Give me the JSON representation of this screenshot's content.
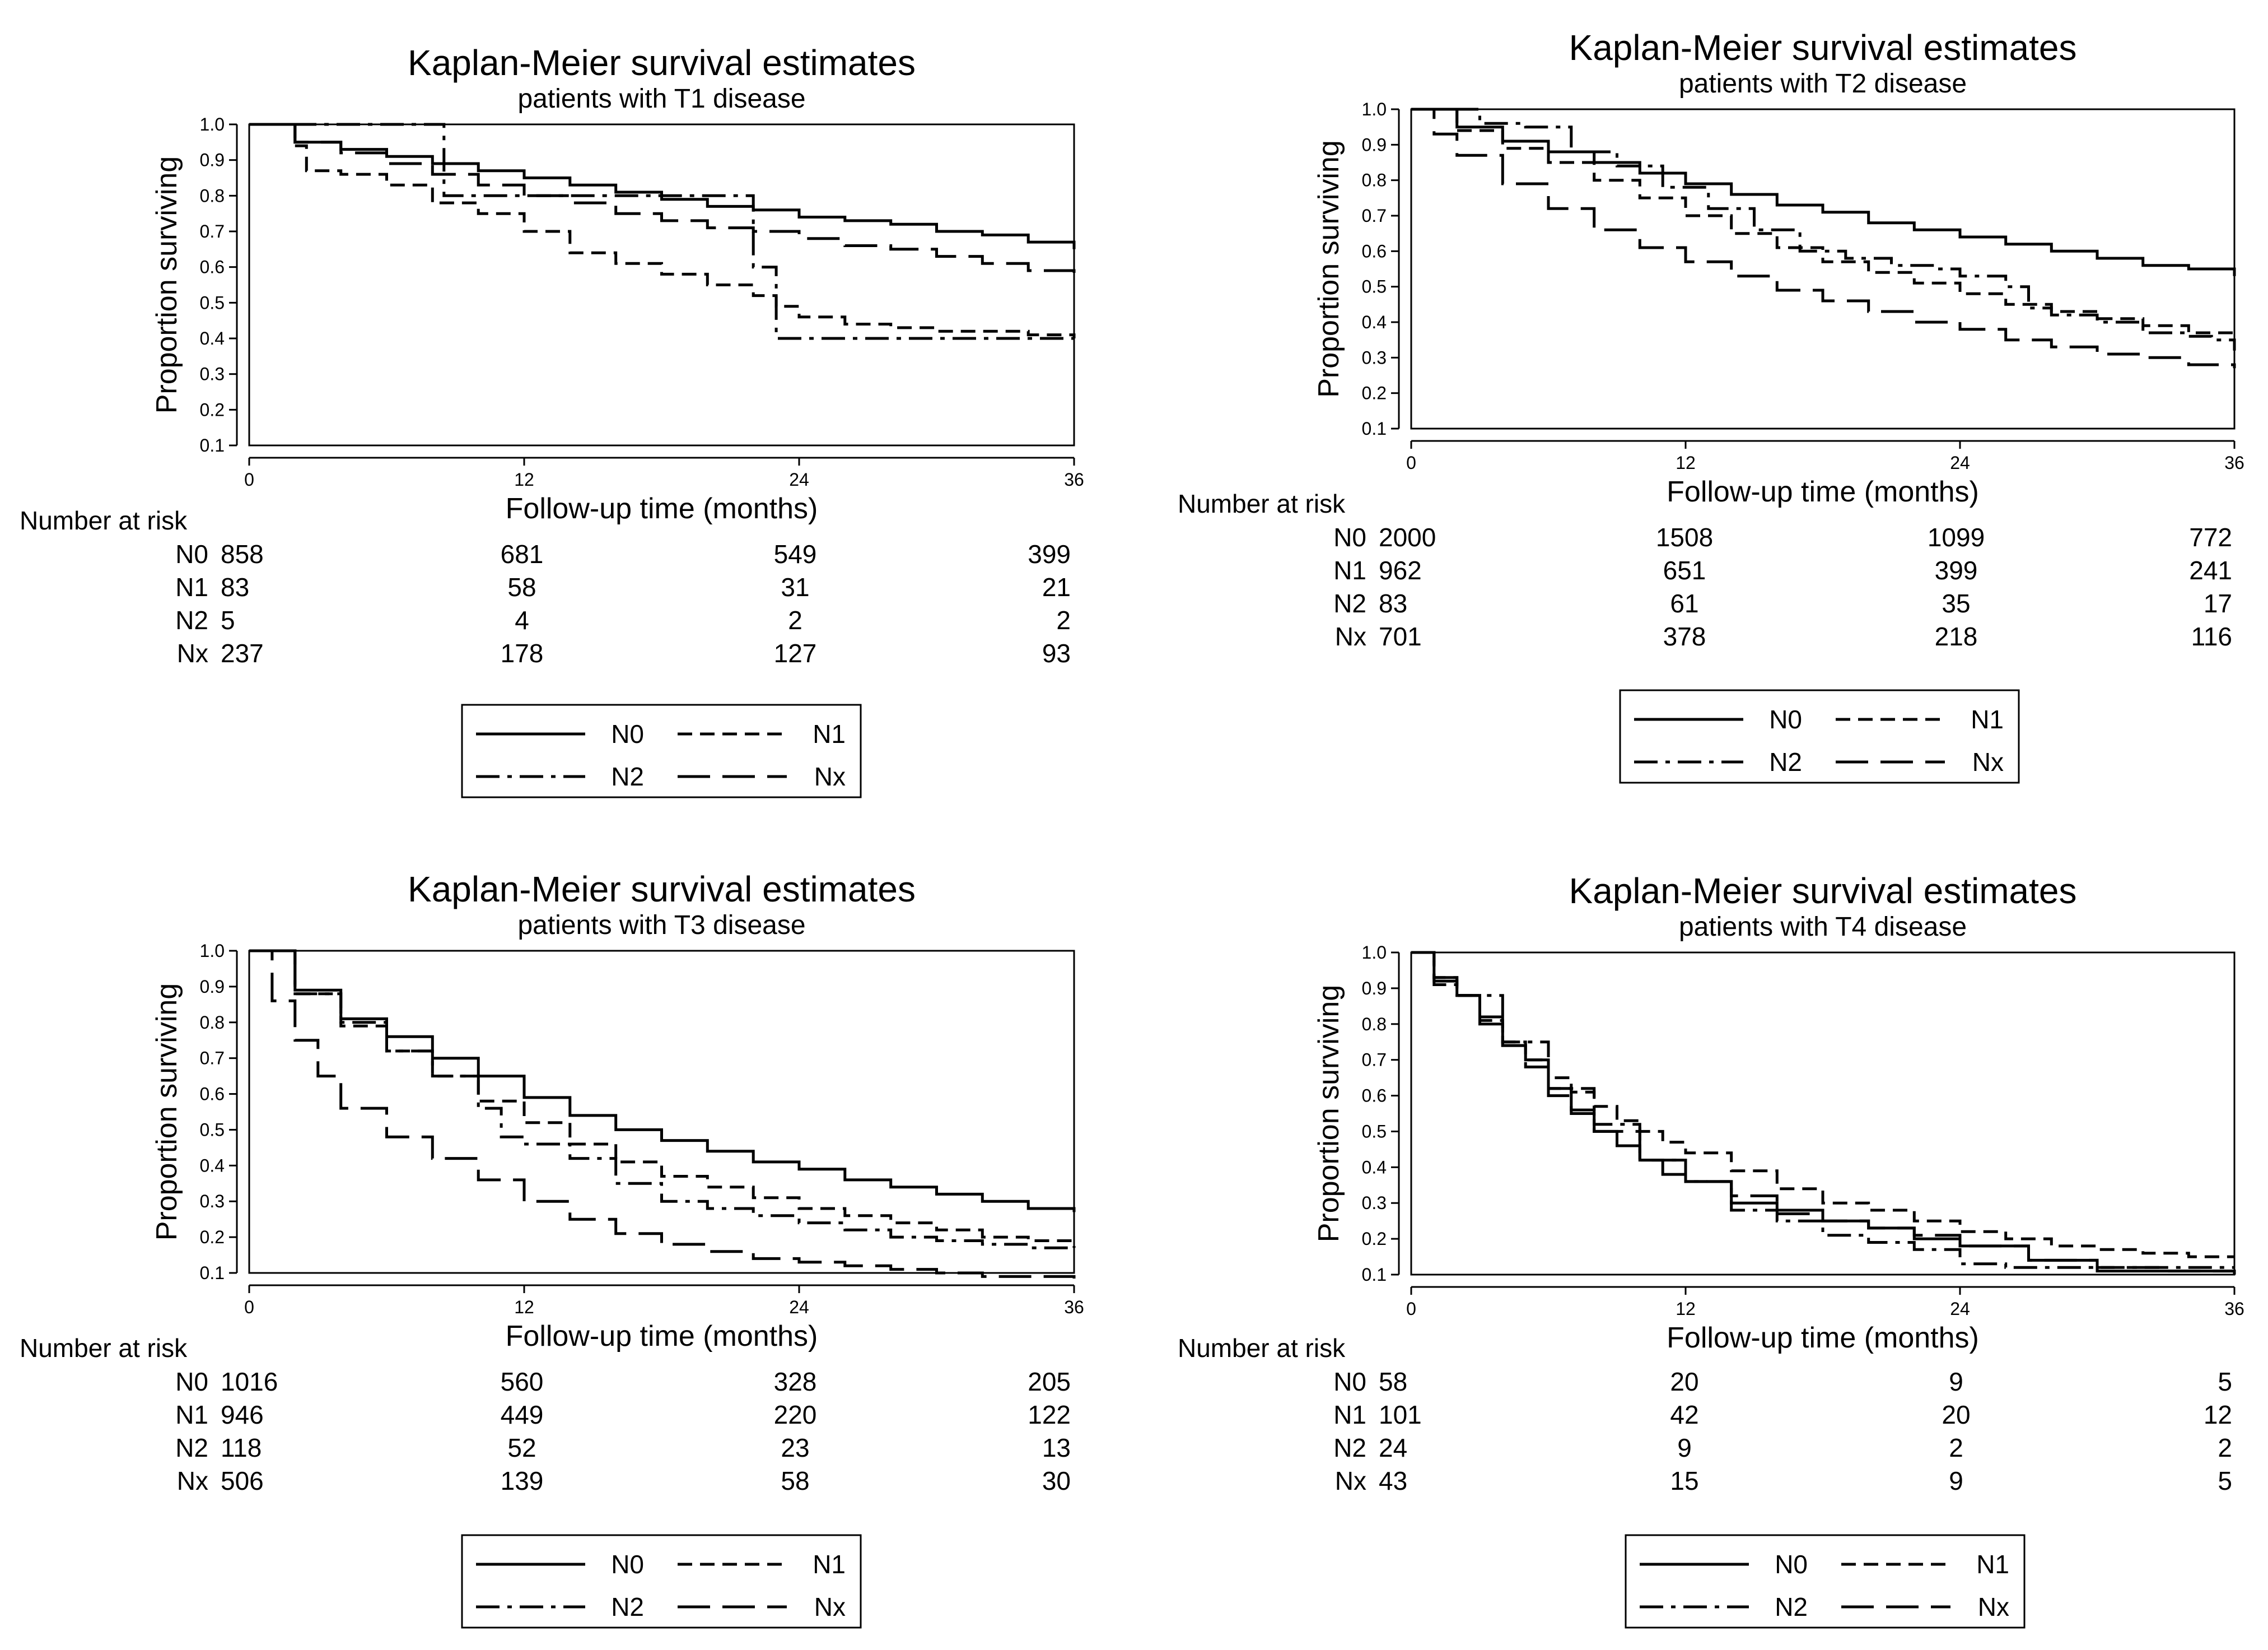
{
  "chart_data": [
    {
      "type": "line",
      "title": "Kaplan-Meier survival estimates",
      "subtitle": "patients with T1 disease",
      "xlabel": "Follow-up time (months)",
      "ylabel": "Proportion surviving",
      "xlim": [
        0,
        36
      ],
      "ylim": [
        0.1,
        1.0
      ],
      "xticks": [
        "0",
        "12",
        "24",
        "36"
      ],
      "yticks": [
        "0.1",
        "0.2",
        "0.3",
        "0.4",
        "0.5",
        "0.6",
        "0.7",
        "0.8",
        "0.9",
        "1.0"
      ],
      "grid": false,
      "legend": "bottom",
      "series": [
        {
          "name": "N0",
          "style": "solid",
          "x": [
            0,
            2,
            4,
            6,
            8,
            10,
            12,
            14,
            16,
            18,
            20,
            22,
            24,
            26,
            28,
            30,
            32,
            34,
            36
          ],
          "y": [
            1.0,
            0.95,
            0.93,
            0.91,
            0.89,
            0.87,
            0.85,
            0.83,
            0.81,
            0.79,
            0.77,
            0.76,
            0.74,
            0.73,
            0.72,
            0.7,
            0.69,
            0.67,
            0.65
          ]
        },
        {
          "name": "N1",
          "style": "dashed",
          "x": [
            0,
            2,
            2.5,
            4,
            6,
            8,
            10,
            12,
            14,
            16,
            18,
            20,
            22,
            23,
            24,
            26,
            28,
            30,
            32,
            34,
            36
          ],
          "y": [
            1.0,
            0.94,
            0.87,
            0.86,
            0.83,
            0.78,
            0.75,
            0.7,
            0.64,
            0.61,
            0.58,
            0.55,
            0.52,
            0.49,
            0.46,
            0.44,
            0.43,
            0.42,
            0.42,
            0.41,
            0.4
          ]
        },
        {
          "name": "N2",
          "style": "dashdot",
          "x": [
            0,
            8.5,
            8.5,
            22.0,
            22.0,
            23.0,
            23.0,
            36
          ],
          "y": [
            1.0,
            1.0,
            0.8,
            0.8,
            0.6,
            0.6,
            0.4,
            0.4
          ]
        },
        {
          "name": "Nx",
          "style": "longdash",
          "x": [
            0,
            2,
            4,
            6,
            8,
            10,
            12,
            14,
            16,
            18,
            20,
            22,
            24,
            26,
            28,
            30,
            32,
            34,
            36
          ],
          "y": [
            1.0,
            0.95,
            0.92,
            0.89,
            0.86,
            0.83,
            0.8,
            0.78,
            0.75,
            0.73,
            0.71,
            0.7,
            0.68,
            0.66,
            0.65,
            0.63,
            0.61,
            0.59,
            0.58
          ]
        }
      ],
      "risk_table": {
        "label": "Number at risk",
        "times": [
          "0",
          "12",
          "24",
          "36"
        ],
        "rows": [
          {
            "group": "N0",
            "values": [
              "858",
              "681",
              "549",
              "399"
            ]
          },
          {
            "group": "N1",
            "values": [
              "83",
              "58",
              "31",
              "21"
            ]
          },
          {
            "group": "N2",
            "values": [
              "5",
              "4",
              "2",
              "2"
            ]
          },
          {
            "group": "Nx",
            "values": [
              "237",
              "178",
              "127",
              "93"
            ]
          }
        ]
      }
    },
    {
      "type": "line",
      "title": "Kaplan-Meier survival estimates",
      "subtitle": "patients with T2 disease",
      "xlabel": "Follow-up time (months)",
      "ylabel": "Proportion surviving",
      "xlim": [
        0,
        36
      ],
      "ylim": [
        0.1,
        1.0
      ],
      "xticks": [
        "0",
        "12",
        "24",
        "36"
      ],
      "yticks": [
        "0.1",
        "0.2",
        "0.3",
        "0.4",
        "0.5",
        "0.6",
        "0.7",
        "0.8",
        "0.9",
        "1.0"
      ],
      "grid": false,
      "legend": "bottom",
      "series": [
        {
          "name": "N0",
          "style": "solid",
          "x": [
            0,
            2,
            4,
            6,
            8,
            10,
            12,
            14,
            16,
            18,
            20,
            22,
            24,
            26,
            28,
            30,
            32,
            34,
            36
          ],
          "y": [
            1.0,
            0.95,
            0.91,
            0.88,
            0.85,
            0.82,
            0.79,
            0.76,
            0.73,
            0.71,
            0.68,
            0.66,
            0.64,
            0.62,
            0.6,
            0.58,
            0.56,
            0.55,
            0.53
          ]
        },
        {
          "name": "N1",
          "style": "dashed",
          "x": [
            0,
            2,
            4,
            6,
            8,
            10,
            12,
            14,
            16,
            18,
            20,
            22,
            24,
            26,
            28,
            30,
            32,
            34,
            36
          ],
          "y": [
            1.0,
            0.94,
            0.89,
            0.85,
            0.8,
            0.75,
            0.7,
            0.65,
            0.61,
            0.57,
            0.54,
            0.51,
            0.48,
            0.45,
            0.43,
            0.41,
            0.39,
            0.37,
            0.36
          ]
        },
        {
          "name": "N2",
          "style": "dashdot",
          "x": [
            0,
            3,
            5,
            7,
            9,
            11,
            13,
            15,
            17,
            19,
            21,
            23,
            24,
            26,
            27,
            28,
            30,
            32,
            34,
            35,
            36
          ],
          "y": [
            1.0,
            0.96,
            0.95,
            0.88,
            0.84,
            0.78,
            0.72,
            0.66,
            0.6,
            0.58,
            0.56,
            0.55,
            0.53,
            0.5,
            0.44,
            0.42,
            0.4,
            0.37,
            0.36,
            0.35,
            0.32
          ]
        },
        {
          "name": "Nx",
          "style": "longdash",
          "x": [
            0,
            1,
            2,
            4,
            6,
            8,
            10,
            12,
            14,
            16,
            18,
            20,
            22,
            24,
            26,
            28,
            30,
            32,
            34,
            36
          ],
          "y": [
            1.0,
            0.93,
            0.87,
            0.79,
            0.72,
            0.66,
            0.61,
            0.57,
            0.53,
            0.49,
            0.46,
            0.43,
            0.4,
            0.38,
            0.35,
            0.33,
            0.31,
            0.3,
            0.28,
            0.27
          ]
        }
      ],
      "risk_table": {
        "label": "Number at risk",
        "times": [
          "0",
          "12",
          "24",
          "36"
        ],
        "rows": [
          {
            "group": "N0",
            "values": [
              "2000",
              "1508",
              "1099",
              "772"
            ]
          },
          {
            "group": "N1",
            "values": [
              "962",
              "651",
              "399",
              "241"
            ]
          },
          {
            "group": "N2",
            "values": [
              "83",
              "61",
              "35",
              "17"
            ]
          },
          {
            "group": "Nx",
            "values": [
              "701",
              "378",
              "218",
              "116"
            ]
          }
        ]
      }
    },
    {
      "type": "line",
      "title": "Kaplan-Meier survival estimates",
      "subtitle": "patients with T3 disease",
      "xlabel": "Follow-up time (months)",
      "ylabel": "Proportion surviving",
      "xlim": [
        0,
        36
      ],
      "ylim": [
        0.1,
        1.0
      ],
      "xticks": [
        "0",
        "12",
        "24",
        "36"
      ],
      "yticks": [
        "0.1",
        "0.2",
        "0.3",
        "0.4",
        "0.5",
        "0.6",
        "0.7",
        "0.8",
        "0.9",
        "1.0"
      ],
      "grid": false,
      "legend": "bottom",
      "series": [
        {
          "name": "N0",
          "style": "solid",
          "x": [
            0,
            2,
            4,
            6,
            8,
            10,
            12,
            14,
            16,
            18,
            20,
            22,
            24,
            26,
            28,
            30,
            32,
            34,
            36
          ],
          "y": [
            1.0,
            0.89,
            0.81,
            0.76,
            0.7,
            0.65,
            0.59,
            0.54,
            0.5,
            0.47,
            0.44,
            0.41,
            0.39,
            0.36,
            0.34,
            0.32,
            0.3,
            0.28,
            0.27
          ]
        },
        {
          "name": "N1",
          "style": "dashed",
          "x": [
            0,
            2,
            4,
            6,
            8,
            10,
            12,
            14,
            16,
            18,
            20,
            22,
            24,
            26,
            28,
            30,
            32,
            34,
            36
          ],
          "y": [
            1.0,
            0.88,
            0.79,
            0.72,
            0.65,
            0.58,
            0.52,
            0.46,
            0.41,
            0.37,
            0.34,
            0.31,
            0.28,
            0.26,
            0.24,
            0.22,
            0.2,
            0.19,
            0.17
          ]
        },
        {
          "name": "N2",
          "style": "dashdot",
          "x": [
            0,
            2,
            4,
            6,
            8,
            10,
            11,
            12,
            14,
            16,
            18,
            20,
            22,
            24,
            26,
            28,
            30,
            32,
            34,
            36
          ],
          "y": [
            1.0,
            0.88,
            0.8,
            0.72,
            0.65,
            0.56,
            0.48,
            0.46,
            0.42,
            0.35,
            0.3,
            0.28,
            0.26,
            0.24,
            0.22,
            0.2,
            0.19,
            0.18,
            0.17,
            0.17
          ]
        },
        {
          "name": "Nx",
          "style": "longdash",
          "x": [
            0,
            1,
            2,
            3,
            4,
            6,
            8,
            10,
            12,
            14,
            16,
            18,
            20,
            22,
            24,
            26,
            28,
            30,
            32,
            34,
            36
          ],
          "y": [
            1.0,
            0.86,
            0.75,
            0.65,
            0.56,
            0.48,
            0.42,
            0.36,
            0.3,
            0.25,
            0.21,
            0.18,
            0.16,
            0.14,
            0.13,
            0.12,
            0.11,
            0.1,
            0.09,
            0.09,
            0.08
          ]
        }
      ],
      "risk_table": {
        "label": "Number at risk",
        "times": [
          "0",
          "12",
          "24",
          "36"
        ],
        "rows": [
          {
            "group": "N0",
            "values": [
              "1016",
              "560",
              "328",
              "205"
            ]
          },
          {
            "group": "N1",
            "values": [
              "946",
              "449",
              "220",
              "122"
            ]
          },
          {
            "group": "N2",
            "values": [
              "118",
              "52",
              "23",
              "13"
            ]
          },
          {
            "group": "Nx",
            "values": [
              "506",
              "139",
              "58",
              "30"
            ]
          }
        ]
      }
    },
    {
      "type": "line",
      "title": "Kaplan-Meier survival estimates",
      "subtitle": "patients with T4 disease",
      "xlabel": "Follow-up time (months)",
      "ylabel": "Proportion surviving",
      "xlim": [
        0,
        36
      ],
      "ylim": [
        0.1,
        1.0
      ],
      "xticks": [
        "0",
        "12",
        "24",
        "36"
      ],
      "yticks": [
        "0.1",
        "0.2",
        "0.3",
        "0.4",
        "0.5",
        "0.6",
        "0.7",
        "0.8",
        "0.9",
        "1.0"
      ],
      "grid": false,
      "legend": "bottom",
      "series": [
        {
          "name": "N0",
          "style": "solid",
          "x": [
            0,
            1,
            2,
            3,
            4,
            5,
            6,
            7,
            8,
            9,
            10,
            11,
            12,
            14,
            16,
            18,
            20,
            22,
            24,
            27,
            30,
            36
          ],
          "y": [
            1.0,
            0.92,
            0.88,
            0.8,
            0.74,
            0.7,
            0.62,
            0.55,
            0.5,
            0.46,
            0.42,
            0.38,
            0.36,
            0.3,
            0.28,
            0.25,
            0.23,
            0.2,
            0.18,
            0.14,
            0.11,
            0.1
          ]
        },
        {
          "name": "N1",
          "style": "dashed",
          "x": [
            0,
            1,
            2,
            3,
            4,
            5,
            6,
            7,
            8,
            9,
            10,
            11,
            12,
            14,
            16,
            18,
            20,
            22,
            24,
            26,
            28,
            30,
            32,
            34,
            36
          ],
          "y": [
            1.0,
            0.93,
            0.88,
            0.81,
            0.75,
            0.7,
            0.65,
            0.61,
            0.57,
            0.53,
            0.5,
            0.47,
            0.44,
            0.39,
            0.34,
            0.3,
            0.28,
            0.25,
            0.22,
            0.2,
            0.18,
            0.17,
            0.16,
            0.15,
            0.15
          ]
        },
        {
          "name": "N2",
          "style": "dashdot",
          "x": [
            0,
            1,
            2,
            4,
            6,
            8,
            10,
            12,
            14,
            16,
            18,
            20,
            22,
            24,
            26,
            28,
            30,
            33,
            36
          ],
          "y": [
            1.0,
            0.91,
            0.88,
            0.75,
            0.62,
            0.52,
            0.42,
            0.36,
            0.28,
            0.25,
            0.21,
            0.19,
            0.17,
            0.13,
            0.12,
            0.12,
            0.12,
            0.12,
            0.12
          ]
        },
        {
          "name": "Nx",
          "style": "longdash",
          "x": [
            0,
            1,
            2,
            3,
            4,
            5,
            6,
            7,
            8,
            10,
            12,
            14,
            16,
            18,
            20,
            22,
            24,
            27,
            30,
            33,
            36
          ],
          "y": [
            1.0,
            0.93,
            0.88,
            0.82,
            0.74,
            0.68,
            0.6,
            0.56,
            0.5,
            0.42,
            0.36,
            0.32,
            0.27,
            0.25,
            0.23,
            0.21,
            0.18,
            0.14,
            0.12,
            0.11,
            0.11
          ]
        }
      ],
      "risk_table": {
        "label": "Number at risk",
        "times": [
          "0",
          "12",
          "24",
          "36"
        ],
        "rows": [
          {
            "group": "N0",
            "values": [
              "58",
              "20",
              "9",
              "5"
            ]
          },
          {
            "group": "N1",
            "values": [
              "101",
              "42",
              "20",
              "12"
            ]
          },
          {
            "group": "N2",
            "values": [
              "24",
              "9",
              "2",
              "2"
            ]
          },
          {
            "group": "Nx",
            "values": [
              "43",
              "15",
              "9",
              "5"
            ]
          }
        ]
      }
    }
  ]
}
